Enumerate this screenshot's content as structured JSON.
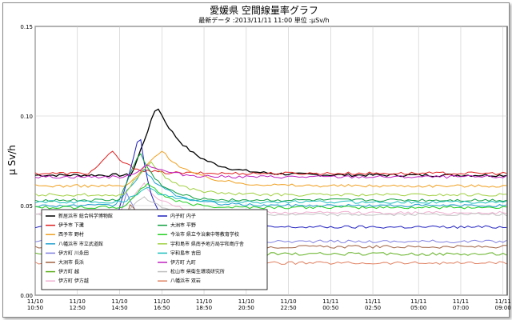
{
  "chart_data": {
    "type": "line",
    "title": "愛媛県 空間線量率グラフ",
    "subtitle": "最新データ :2013/11/11 11:00 単位 :μSv/h",
    "ylabel": "μ Sv/h",
    "xlabel": "",
    "ylim": [
      0,
      0.15
    ],
    "yticks": [
      "0.15",
      "0.10",
      "0.05",
      "0.00"
    ],
    "ytick_values": [
      0.15,
      0.1,
      0.05,
      0.0
    ],
    "xlim": [
      10.8333,
      33.2
    ],
    "xticks": [
      {
        "t": 10.8333,
        "date": "11/10",
        "time": "10:50"
      },
      {
        "t": 12.8333,
        "date": "11/10",
        "time": "12:50"
      },
      {
        "t": 14.8333,
        "date": "11/10",
        "time": "14:50"
      },
      {
        "t": 16.8333,
        "date": "11/10",
        "time": "16:50"
      },
      {
        "t": 18.8333,
        "date": "11/10",
        "time": "18:50"
      },
      {
        "t": 20.8333,
        "date": "11/10",
        "time": "20:50"
      },
      {
        "t": 22.8333,
        "date": "11/10",
        "time": "22:50"
      },
      {
        "t": 24.8333,
        "date": "11/11",
        "time": "00:50"
      },
      {
        "t": 26.8333,
        "date": "11/11",
        "time": "02:50"
      },
      {
        "t": 29.0,
        "date": "11/11",
        "time": "05:00"
      },
      {
        "t": 31.0,
        "date": "11/11",
        "time": "07:00"
      },
      {
        "t": 33.0,
        "date": "11/11",
        "time": "09:00"
      }
    ],
    "grid": true,
    "legend_position": "bottom-left",
    "series": [
      {
        "name": "新居浜市 総合科学博物館",
        "color": "#000000",
        "base": 0.067,
        "peak": 0.106,
        "peak_t": 16.6,
        "rise_t": 15.4,
        "decay_h": 3.0
      },
      {
        "name": "伊予市 下灘",
        "color": "#e02020",
        "base": 0.068,
        "peak": 0.08,
        "peak_t": 14.5,
        "rise_t": 13.4,
        "decay_h": 1.5
      },
      {
        "name": "西予市 野村",
        "color": "#f0a020",
        "base": 0.061,
        "peak": 0.081,
        "peak_t": 16.8,
        "rise_t": 15.2,
        "decay_h": 3.0
      },
      {
        "name": "八幡浜市 市立武道館",
        "color": "#20a0d0",
        "base": 0.05,
        "peak": 0.07,
        "peak_t": 16.0,
        "rise_t": 14.6,
        "decay_h": 2.5
      },
      {
        "name": "伊方町 川永田",
        "color": "#8080e0",
        "base": 0.03,
        "peak": 0.058,
        "peak_t": 15.2,
        "rise_t": 14.4,
        "decay_h": 1.5
      },
      {
        "name": "大洲市 長浜",
        "color": "#a06040",
        "base": 0.027,
        "peak": 0.052,
        "peak_t": 15.4,
        "rise_t": 14.6,
        "decay_h": 1.5
      },
      {
        "name": "伊方町 越",
        "color": "#60b020",
        "base": 0.023,
        "peak": 0.04,
        "peak_t": 15.0,
        "rise_t": 14.4,
        "decay_h": 1.2
      },
      {
        "name": "伊方町 伊方越",
        "color": "#f0b0d0",
        "base": 0.046,
        "peak": 0.062,
        "peak_t": 16.0,
        "rise_t": 14.8,
        "decay_h": 2.0
      },
      {
        "name": "内子町 内子",
        "color": "#2020c0",
        "base": 0.038,
        "peak": 0.091,
        "peak_t": 15.8,
        "rise_t": 14.6,
        "decay_h": 1.0
      },
      {
        "name": "大洲市 平野",
        "color": "#10a040",
        "base": 0.053,
        "peak": 0.08,
        "peak_t": 15.8,
        "rise_t": 14.8,
        "decay_h": 1.8
      },
      {
        "name": "今治市 県立今治東中等教育学校",
        "color": "#20d020",
        "base": 0.049,
        "peak": 0.063,
        "peak_t": 16.2,
        "rise_t": 15.0,
        "decay_h": 2.0
      },
      {
        "name": "宇和島市 県南予地方局宇和島庁舎",
        "color": "#a0d040",
        "base": 0.056,
        "peak": 0.075,
        "peak_t": 16.3,
        "rise_t": 15.0,
        "decay_h": 2.2
      },
      {
        "name": "宇和島市 吉田",
        "color": "#20c0c0",
        "base": 0.052,
        "peak": 0.06,
        "peak_t": 16.2,
        "rise_t": 15.0,
        "decay_h": 2.0
      },
      {
        "name": "伊方町 九町",
        "color": "#c020c0",
        "base": 0.066,
        "peak": 0.073,
        "peak_t": 16.2,
        "rise_t": 15.2,
        "decay_h": 2.0
      },
      {
        "name": "松山市 県衛生環境研究所",
        "color": "#c0c0c0",
        "base": 0.045,
        "peak": 0.055,
        "peak_t": 16.0,
        "rise_t": 15.0,
        "decay_h": 2.0
      },
      {
        "name": "八幡浜市 双岩",
        "color": "#e08060",
        "base": 0.018,
        "peak": 0.036,
        "peak_t": 15.4,
        "rise_t": 14.6,
        "decay_h": 1.2
      }
    ]
  }
}
